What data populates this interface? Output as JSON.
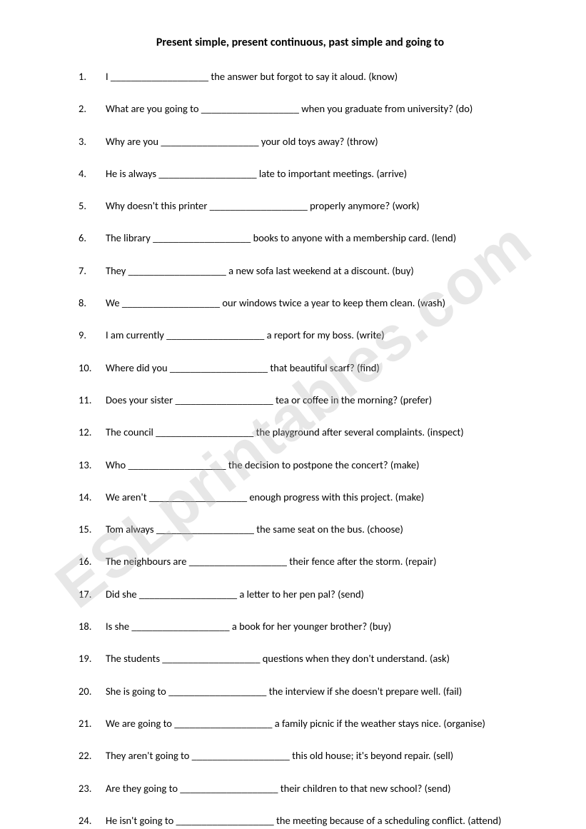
{
  "title": "Present simple, present continuous, past simple and going to",
  "watermark": "ESLprintables.com",
  "blank": "___________________",
  "questions": [
    {
      "num": "1.",
      "before": "I ",
      "after": " the answer but forgot to say it aloud. (know)"
    },
    {
      "num": "2.",
      "before": "What are you going to ",
      "after": " when you graduate from university? (do)"
    },
    {
      "num": "3.",
      "before": "Why are you ",
      "after": " your old toys away? (throw)"
    },
    {
      "num": "4.",
      "before": "He is always ",
      "after": " late to important meetings. (arrive)"
    },
    {
      "num": "5.",
      "before": "Why doesn't this printer ",
      "after": " properly anymore? (work)"
    },
    {
      "num": "6.",
      "before": "The library ",
      "after": " books to anyone with a membership card. (lend)"
    },
    {
      "num": "7.",
      "before": "They ",
      "after": " a new sofa last weekend at a discount. (buy)"
    },
    {
      "num": "8.",
      "before": "We ",
      "after": " our windows twice a year to keep them clean. (wash)"
    },
    {
      "num": "9.",
      "before": "I am currently ",
      "after": " a report for my boss. (write)"
    },
    {
      "num": "10.",
      "before": "Where did you ",
      "after": " that beautiful scarf? (find)"
    },
    {
      "num": "11.",
      "before": "Does your sister ",
      "after": " tea or coffee in the morning? (prefer)"
    },
    {
      "num": "12.",
      "before": "The council ",
      "after": " the playground after several complaints. (inspect)"
    },
    {
      "num": "13.",
      "before": "Who ",
      "after": " the decision to postpone the concert? (make)"
    },
    {
      "num": "14.",
      "before": "We aren't ",
      "after": " enough progress with this project. (make)"
    },
    {
      "num": "15.",
      "before": "Tom always ",
      "after": " the same seat on the bus. (choose)"
    },
    {
      "num": "16.",
      "before": "The neighbours are ",
      "after": " their fence after the storm. (repair)"
    },
    {
      "num": "17.",
      "before": "Did she ",
      "after": " a letter to her pen pal? (send)"
    },
    {
      "num": "18.",
      "before": "Is she ",
      "after": " a book for her younger brother? (buy)"
    },
    {
      "num": "19.",
      "before": "The students ",
      "after": " questions when they don't understand. (ask)"
    },
    {
      "num": "20.",
      "before": "She is going to ",
      "after": " the interview if she doesn't prepare well. (fail)"
    },
    {
      "num": "21.",
      "before": "We are going to ",
      "after": " a family picnic if the weather stays nice. (organise)"
    },
    {
      "num": "22.",
      "before": "They aren't going to ",
      "after": " this old house; it's beyond repair. (sell)"
    },
    {
      "num": "23.",
      "before": "Are they going to ",
      "after": " their children to that new school? (send)"
    },
    {
      "num": "24.",
      "before": "He isn't going to ",
      "after": " the meeting because of a scheduling conflict. (attend)"
    }
  ]
}
